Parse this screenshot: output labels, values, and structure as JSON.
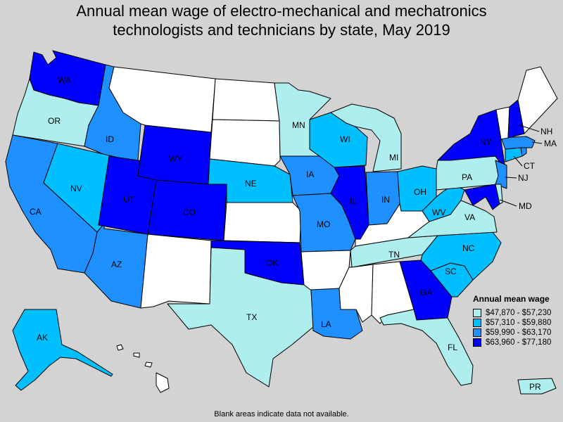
{
  "title": {
    "line1": "Annual mean wage of electro-mechanical and mechatronics",
    "line2": "technologists and technicians by state, May 2019"
  },
  "colors": {
    "bin1": "#afeeee",
    "bin2": "#00bfff",
    "bin3": "#1e90ff",
    "bin4": "#0000ff",
    "nodata": "#ffffff",
    "background": "#d3d3d3"
  },
  "legend": {
    "title": "Annual mean wage",
    "bins": [
      {
        "range": "$47,870 - $57,230",
        "color": "#afeeee"
      },
      {
        "range": "$57,310 - $59,880",
        "color": "#00bfff"
      },
      {
        "range": "$59,990 - $63,170",
        "color": "#1e90ff"
      },
      {
        "range": "$63,960 - $77,180",
        "color": "#0000ff"
      }
    ]
  },
  "states": {
    "WA": {
      "label": "WA",
      "bin": 4
    },
    "OR": {
      "label": "OR",
      "bin": 1
    },
    "CA": {
      "label": "CA",
      "bin": 3
    },
    "ID": {
      "label": "ID",
      "bin": 3
    },
    "NV": {
      "label": "NV",
      "bin": 2
    },
    "AZ": {
      "label": "AZ",
      "bin": 3
    },
    "UT": {
      "label": "UT",
      "bin": 4
    },
    "WY": {
      "label": "WY",
      "bin": 4
    },
    "CO": {
      "label": "CO",
      "bin": 4
    },
    "MT": {
      "label": "",
      "bin": 0
    },
    "ND": {
      "label": "",
      "bin": 0
    },
    "SD": {
      "label": "",
      "bin": 0
    },
    "NE": {
      "label": "NE",
      "bin": 2
    },
    "KS": {
      "label": "",
      "bin": 0
    },
    "NM": {
      "label": "",
      "bin": 0
    },
    "OK": {
      "label": "OK",
      "bin": 4
    },
    "TX": {
      "label": "TX",
      "bin": 1
    },
    "MN": {
      "label": "MN",
      "bin": 1
    },
    "IA": {
      "label": "IA",
      "bin": 3
    },
    "MO": {
      "label": "MO",
      "bin": 3
    },
    "AR": {
      "label": "",
      "bin": 0
    },
    "LA": {
      "label": "LA",
      "bin": 3
    },
    "WI": {
      "label": "WI",
      "bin": 2
    },
    "IL": {
      "label": "IL",
      "bin": 4
    },
    "MI": {
      "label": "MI",
      "bin": 1
    },
    "IN": {
      "label": "IN",
      "bin": 3
    },
    "OH": {
      "label": "OH",
      "bin": 2
    },
    "KY": {
      "label": "",
      "bin": 0
    },
    "TN": {
      "label": "TN",
      "bin": 1
    },
    "MS": {
      "label": "",
      "bin": 0
    },
    "AL": {
      "label": "",
      "bin": 0
    },
    "GA": {
      "label": "GA",
      "bin": 4
    },
    "FL": {
      "label": "FL",
      "bin": 1
    },
    "SC": {
      "label": "SC",
      "bin": 2
    },
    "NC": {
      "label": "NC",
      "bin": 2
    },
    "VA": {
      "label": "VA",
      "bin": 1
    },
    "WV": {
      "label": "WV",
      "bin": 2
    },
    "PA": {
      "label": "PA",
      "bin": 1
    },
    "NY": {
      "label": "NY",
      "bin": 4
    },
    "NJ": {
      "label": "NJ",
      "bin": 3
    },
    "MD": {
      "label": "MD",
      "bin": 4
    },
    "DE": {
      "label": "",
      "bin": 1
    },
    "CT": {
      "label": "CT",
      "bin": 2
    },
    "RI": {
      "label": "",
      "bin": 3
    },
    "MA": {
      "label": "MA",
      "bin": 3
    },
    "VT": {
      "label": "",
      "bin": 0
    },
    "NH": {
      "label": "NH",
      "bin": 4
    },
    "ME": {
      "label": "",
      "bin": 0
    },
    "AK": {
      "label": "AK",
      "bin": 2
    },
    "HI": {
      "label": "",
      "bin": 0
    },
    "PR": {
      "label": "PR",
      "bin": 1
    }
  },
  "footnote": "Blank areas indicate data not available."
}
